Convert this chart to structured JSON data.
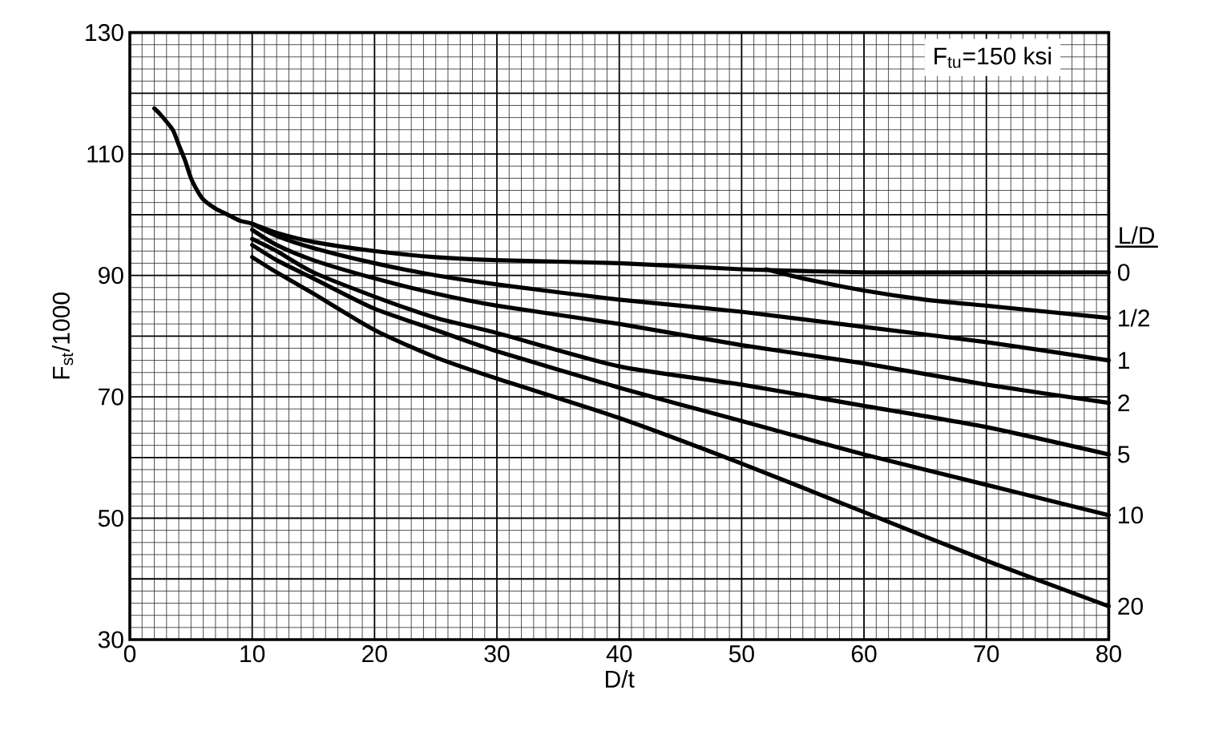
{
  "chart_data": {
    "type": "line",
    "xlabel": "D/t",
    "ylabel": "F$_{st}$/1000",
    "legend_title": "L/D",
    "annotations": [
      "F$_{tu}$=150 ksi"
    ],
    "xlim": [
      0,
      80
    ],
    "ylim": [
      30,
      130
    ],
    "xticks": [
      0,
      10,
      20,
      30,
      40,
      50,
      60,
      70,
      80
    ],
    "yticks": [
      30,
      {
        "value": 40,
        "label": null
      },
      50,
      {
        "value": 60,
        "label": null
      },
      70,
      {
        "value": 80,
        "label": null
      },
      90,
      {
        "value": 100,
        "label": null
      },
      110,
      {
        "value": 120,
        "label": null
      },
      130
    ],
    "grid": true,
    "line_style": "solid",
    "series": [
      {
        "name": "0",
        "color": "#000000",
        "x": [
          2,
          2.5,
          3.5,
          4,
          4.5,
          5,
          5.5,
          6,
          7,
          8,
          9,
          10,
          12,
          15,
          20,
          25,
          30,
          40,
          50,
          60,
          70,
          80
        ],
        "values": [
          117.5,
          116.5,
          114,
          111.5,
          109,
          106,
          104,
          102.5,
          101,
          100,
          99,
          98.5,
          97,
          95.5,
          94,
          93,
          92.5,
          92,
          91,
          90.5,
          90.5,
          90.5
        ]
      },
      {
        "name": "1/2",
        "color": "#000000",
        "x": [
          52,
          55,
          60,
          65,
          70,
          75,
          80
        ],
        "values": [
          91,
          89.5,
          87.5,
          86,
          85,
          84,
          83
        ]
      },
      {
        "name": "1",
        "color": "#000000",
        "x": [
          10,
          12,
          15,
          20,
          25,
          30,
          40,
          50,
          60,
          70,
          80
        ],
        "values": [
          98.5,
          96.5,
          94.5,
          92,
          90,
          88.5,
          86,
          84,
          81.5,
          79,
          76
        ]
      },
      {
        "name": "2",
        "color": "#000000",
        "x": [
          10,
          12,
          15,
          20,
          25,
          30,
          40,
          50,
          60,
          70,
          80
        ],
        "values": [
          97.5,
          95,
          92.5,
          89.5,
          87,
          85,
          82,
          78.5,
          75.5,
          72,
          69
        ]
      },
      {
        "name": "5",
        "color": "#000000",
        "x": [
          10,
          12,
          15,
          20,
          25,
          30,
          40,
          50,
          60,
          70,
          80
        ],
        "values": [
          96,
          94,
          90.5,
          86.5,
          83,
          80.5,
          75,
          72,
          68.5,
          65,
          60.5
        ]
      },
      {
        "name": "10",
        "color": "#000000",
        "x": [
          10,
          12,
          15,
          20,
          25,
          30,
          40,
          50,
          60,
          70,
          80
        ],
        "values": [
          95,
          92.5,
          89.5,
          84.5,
          81,
          77.5,
          71.5,
          66,
          60.5,
          55.5,
          50.5
        ]
      },
      {
        "name": "20",
        "color": "#000000",
        "x": [
          10,
          12,
          15,
          20,
          25,
          30,
          40,
          50,
          60,
          70,
          80
        ],
        "values": [
          93,
          90.5,
          87,
          81,
          76.5,
          73,
          66.5,
          59,
          51,
          43,
          35.5
        ]
      }
    ]
  }
}
